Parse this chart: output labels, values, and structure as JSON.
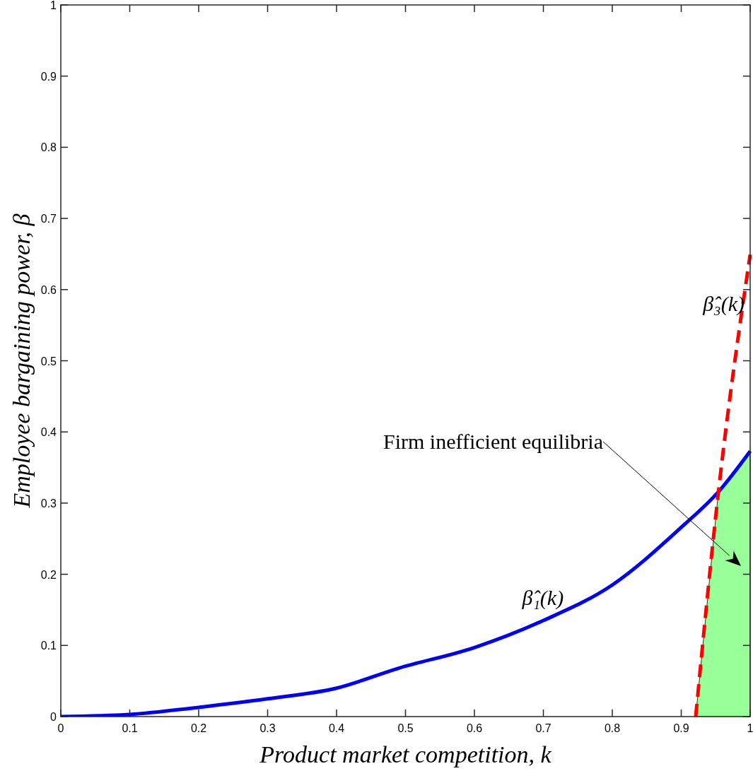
{
  "chart_data": {
    "type": "line",
    "xlabel": "Product market competition, k",
    "ylabel": "Employee bargaining power, β",
    "xlim": [
      0,
      1
    ],
    "ylim": [
      0,
      1
    ],
    "xticks": [
      0,
      0.1,
      0.2,
      0.3,
      0.4,
      0.5,
      0.6,
      0.7,
      0.8,
      0.9,
      1
    ],
    "yticks": [
      0,
      0.1,
      0.2,
      0.3,
      0.4,
      0.5,
      0.6,
      0.7,
      0.8,
      0.9,
      1
    ],
    "grid": false,
    "legend": false,
    "series": [
      {
        "type": "area",
        "color": "#99ff99",
        "x": [
          0.921,
          0.954,
          0.97,
          0.985,
          1
        ],
        "values": [
          0,
          0.316,
          0.334,
          0.353,
          0.373
        ]
      },
      {
        "name": "β̂₁(k)",
        "color": "#0000ff",
        "line_style": "solid",
        "x": [
          0,
          0.1,
          0.2,
          0.3,
          0.4,
          0.49,
          0.6,
          0.7,
          0.8,
          0.9,
          0.954,
          1
        ],
        "values": [
          0,
          0.003,
          0.013,
          0.025,
          0.04,
          0.068,
          0.097,
          0.135,
          0.185,
          0.266,
          0.316,
          0.373
        ]
      },
      {
        "name": "β̂₃(k)",
        "color": "#ff0000",
        "line_style": "dashed",
        "x": [
          0.921,
          0.954,
          1
        ],
        "values": [
          0,
          0.316,
          0.649
        ]
      }
    ],
    "annotations": [
      "Firm inefficient equilibria"
    ]
  }
}
